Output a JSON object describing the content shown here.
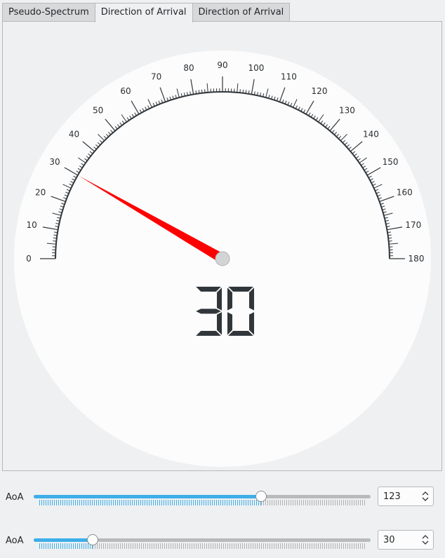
{
  "tabs": [
    {
      "label": "Pseudo-Spectrum",
      "active": false
    },
    {
      "label": "Direction of Arrival",
      "active": true
    },
    {
      "label": "Direction of Arrival",
      "active": false
    }
  ],
  "gauge": {
    "min": 0,
    "max": 180,
    "value": 30,
    "display": "30",
    "major_labels": [
      "0",
      "10",
      "20",
      "30",
      "40",
      "50",
      "60",
      "70",
      "80",
      "90",
      "100",
      "110",
      "120",
      "130",
      "140",
      "150",
      "160",
      "170",
      "180"
    ],
    "needle_color": "#ff0000",
    "face_color": "#fcfcfc"
  },
  "controls": [
    {
      "label": "AoA",
      "value": "123",
      "slider_fraction": 0.676
    },
    {
      "label": "AoA",
      "value": "30",
      "slider_fraction": 0.176
    }
  ],
  "colors": {
    "accent": "#3daee9"
  }
}
